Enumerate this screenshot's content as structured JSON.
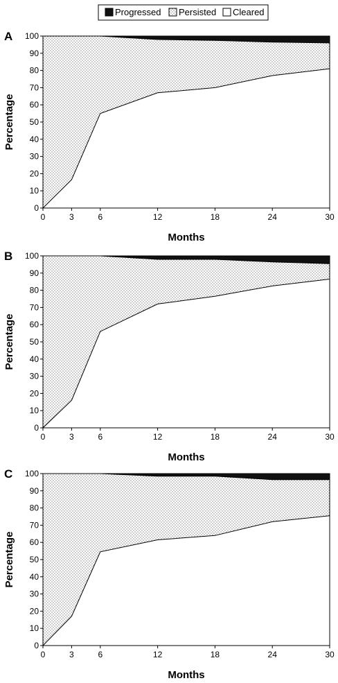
{
  "legend": [
    {
      "key": "progressed",
      "label": "Progressed",
      "fill": "#111111"
    },
    {
      "key": "persisted",
      "label": "Persisted",
      "fill": "dots"
    },
    {
      "key": "cleared",
      "label": "Cleared",
      "fill": "#ffffff"
    }
  ],
  "colors": {
    "progressed": "#111111",
    "cleared": "#ffffff",
    "dots": "#555555",
    "line": "#000000"
  },
  "chart_data": [
    {
      "type": "area",
      "panel_label": "A",
      "xlabel": "Months",
      "ylabel": "Percentage",
      "x": [
        0,
        3,
        6,
        12,
        18,
        24,
        30
      ],
      "x_ticks": [
        0,
        3,
        6,
        12,
        18,
        24,
        30
      ],
      "y_ticks": [
        0,
        10,
        20,
        30,
        40,
        50,
        60,
        70,
        80,
        90,
        100
      ],
      "ylim": [
        0,
        100
      ],
      "stacked": true,
      "series": [
        {
          "name": "Cleared",
          "values": [
            0,
            16.5,
            55,
            67,
            70,
            77,
            81
          ]
        },
        {
          "name": "Persisted",
          "values": [
            100,
            83.5,
            45,
            31,
            27.5,
            19.5,
            15
          ]
        },
        {
          "name": "Progressed",
          "values": [
            0,
            0,
            0,
            2,
            2.5,
            3.5,
            4
          ]
        }
      ]
    },
    {
      "type": "area",
      "panel_label": "B",
      "xlabel": "Months",
      "ylabel": "Percentage",
      "x": [
        0,
        3,
        6,
        12,
        18,
        24,
        30
      ],
      "x_ticks": [
        0,
        3,
        6,
        12,
        18,
        24,
        30
      ],
      "y_ticks": [
        0,
        10,
        20,
        30,
        40,
        50,
        60,
        70,
        80,
        90,
        100
      ],
      "ylim": [
        0,
        100
      ],
      "stacked": true,
      "series": [
        {
          "name": "Cleared",
          "values": [
            0,
            16,
            56,
            72,
            76.5,
            82.5,
            86.5
          ]
        },
        {
          "name": "Persisted",
          "values": [
            100,
            84,
            44,
            26,
            21.5,
            14,
            9
          ]
        },
        {
          "name": "Progressed",
          "values": [
            0,
            0,
            0,
            2,
            2,
            3.5,
            4.5
          ]
        }
      ]
    },
    {
      "type": "area",
      "panel_label": "C",
      "xlabel": "Months",
      "ylabel": "Percentage",
      "x": [
        0,
        3,
        6,
        12,
        18,
        24,
        30
      ],
      "x_ticks": [
        0,
        3,
        6,
        12,
        18,
        24,
        30
      ],
      "y_ticks": [
        0,
        10,
        20,
        30,
        40,
        50,
        60,
        70,
        80,
        90,
        100
      ],
      "ylim": [
        0,
        100
      ],
      "stacked": true,
      "series": [
        {
          "name": "Cleared",
          "values": [
            0,
            17,
            54.5,
            61.5,
            64,
            72,
            75.5
          ]
        },
        {
          "name": "Persisted",
          "values": [
            100,
            83,
            45.5,
            37,
            34.5,
            24.5,
            21
          ]
        },
        {
          "name": "Progressed",
          "values": [
            0,
            0,
            0,
            1.5,
            1.5,
            3.5,
            3.5
          ]
        }
      ]
    }
  ]
}
